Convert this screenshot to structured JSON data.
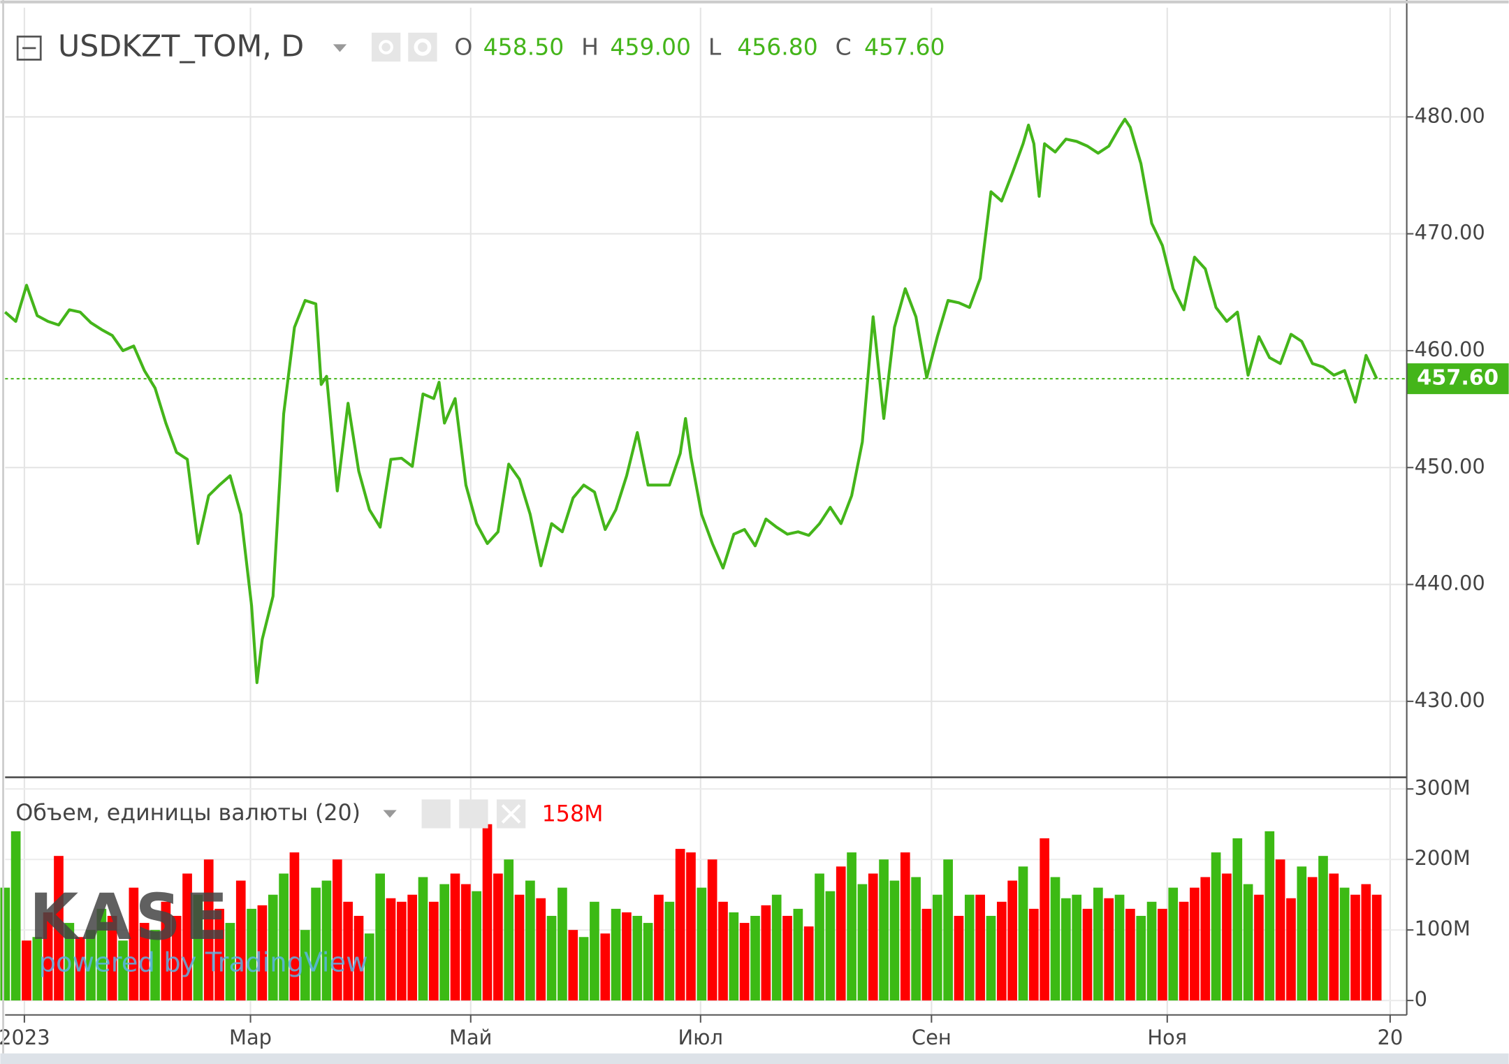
{
  "chart_data": [
    {
      "type": "line",
      "title": "USDKZT_TOM, D",
      "color": "#44b51a",
      "ohlc": [
        {
          "name": "O",
          "label": "458.50"
        },
        {
          "name": "H",
          "label": "459.00"
        },
        {
          "name": "L",
          "label": "456.80"
        },
        {
          "name": "C",
          "label": "457.60"
        }
      ],
      "last": {
        "value": 457.6,
        "label": "457.60"
      },
      "x": [
        0,
        2,
        4,
        6,
        8,
        10,
        12,
        14,
        16,
        18,
        20,
        22,
        24,
        26,
        28,
        30,
        32,
        34,
        36,
        38,
        40,
        42,
        44,
        46,
        47,
        48,
        50,
        52,
        54,
        56,
        58,
        59,
        60,
        62,
        64,
        66,
        68,
        70,
        72,
        74,
        76,
        78,
        80,
        81,
        82,
        84,
        86,
        88,
        90,
        92,
        94,
        96,
        98,
        100,
        102,
        104,
        106,
        108,
        110,
        112,
        114,
        116,
        118,
        120,
        122,
        124,
        126,
        127,
        128,
        130,
        132,
        134,
        136,
        138,
        140,
        142,
        144,
        146,
        148,
        150,
        152,
        154,
        156,
        158,
        160,
        162,
        164,
        166,
        168,
        170,
        172,
        174,
        176,
        178,
        180,
        182,
        184,
        186,
        188,
        190,
        191,
        192,
        193,
        194,
        196,
        198,
        200,
        202,
        204,
        206,
        208,
        209,
        210,
        212,
        214,
        216,
        218,
        220,
        222,
        224,
        226,
        228,
        230,
        232,
        234,
        236,
        238,
        240,
        242,
        244,
        246,
        248,
        250,
        252,
        253,
        254,
        256
      ],
      "values": [
        463.3,
        462.5,
        465.6,
        463.0,
        462.5,
        462.2,
        463.5,
        463.3,
        462.4,
        461.8,
        461.3,
        460.0,
        460.4,
        458.3,
        456.8,
        453.8,
        451.3,
        450.7,
        443.5,
        447.6,
        448.5,
        449.3,
        446.0,
        438.2,
        431.6,
        435.3,
        439.0,
        454.6,
        462.0,
        464.3,
        464.0,
        457.1,
        457.8,
        448.0,
        455.5,
        449.7,
        446.4,
        444.9,
        450.7,
        450.8,
        450.1,
        456.3,
        455.9,
        457.3,
        453.8,
        455.9,
        448.5,
        445.2,
        443.5,
        444.5,
        450.3,
        449.0,
        446.0,
        441.6,
        445.2,
        444.5,
        447.4,
        448.5,
        447.9,
        444.7,
        446.4,
        449.3,
        453.0,
        448.5,
        448.5,
        448.5,
        451.2,
        454.2,
        450.9,
        446.0,
        443.5,
        441.4,
        444.3,
        444.7,
        443.3,
        445.6,
        444.9,
        444.3,
        444.5,
        444.2,
        445.2,
        446.6,
        445.2,
        447.6,
        452.2,
        462.9,
        454.2,
        462.0,
        465.3,
        462.9,
        457.7,
        461.2,
        464.3,
        464.1,
        463.7,
        466.2,
        473.6,
        472.8,
        475.2,
        477.7,
        479.3,
        477.7,
        473.2,
        477.7,
        477.0,
        478.1,
        477.9,
        477.5,
        476.9,
        477.5,
        479.1,
        479.8,
        479.1,
        476.0,
        470.9,
        469.0,
        465.3,
        463.5,
        468.0,
        467.0,
        463.7,
        462.5,
        463.3,
        457.9,
        461.2,
        459.4,
        458.9,
        461.4,
        460.8,
        458.9,
        458.6,
        457.9,
        458.3,
        455.6,
        457.5,
        459.6,
        457.6
      ],
      "xlim": [
        0,
        261.6
      ],
      "xticks": [
        {
          "value": 3.6,
          "label": "2023"
        },
        {
          "value": 45.8,
          "label": "Мар"
        },
        {
          "value": 86.9,
          "label": "Май"
        },
        {
          "value": 129.8,
          "label": "Июл"
        },
        {
          "value": 172.9,
          "label": "Сен"
        },
        {
          "value": 216.9,
          "label": "Ноя"
        },
        {
          "value": 258.5,
          "label": "20"
        }
      ],
      "ylim": [
        423.5,
        490
      ],
      "yticks": [
        {
          "value": 430,
          "label": "430.00"
        },
        {
          "value": 440,
          "label": "440.00"
        },
        {
          "value": 450,
          "label": "450.00"
        },
        {
          "value": 460,
          "label": "460.00"
        },
        {
          "value": 470,
          "label": "470.00"
        },
        {
          "value": 480,
          "label": "480.00"
        }
      ],
      "grid": true
    },
    {
      "type": "bar",
      "title": "Объем, единицы валюты (20)",
      "legend_value": "158M",
      "watermark": "KASE",
      "credit": "powered by TradingView",
      "x": [
        0,
        2,
        4,
        6,
        8,
        10,
        12,
        14,
        16,
        18,
        20,
        22,
        24,
        26,
        28,
        30,
        32,
        34,
        36,
        38,
        40,
        42,
        44,
        46,
        48,
        50,
        52,
        54,
        56,
        58,
        60,
        62,
        64,
        66,
        68,
        70,
        72,
        74,
        76,
        78,
        80,
        82,
        84,
        86,
        88,
        90,
        92,
        94,
        96,
        98,
        100,
        102,
        104,
        106,
        108,
        110,
        112,
        114,
        116,
        118,
        120,
        122,
        124,
        126,
        128,
        130,
        132,
        134,
        136,
        138,
        140,
        142,
        144,
        146,
        148,
        150,
        152,
        154,
        156,
        158,
        160,
        162,
        164,
        166,
        168,
        170,
        172,
        174,
        176,
        178,
        180,
        182,
        184,
        186,
        188,
        190,
        192,
        194,
        196,
        198,
        200,
        202,
        204,
        206,
        208,
        210,
        212,
        214,
        216,
        218,
        220,
        222,
        224,
        226,
        228,
        230,
        232,
        234,
        236,
        238,
        240,
        242,
        244,
        246,
        248,
        250,
        252,
        254,
        256
      ],
      "values": [
        160,
        240,
        85,
        90,
        125,
        205,
        110,
        90,
        100,
        130,
        120,
        85,
        160,
        110,
        100,
        140,
        120,
        180,
        150,
        200,
        130,
        110,
        170,
        130,
        135,
        150,
        180,
        210,
        100,
        160,
        170,
        200,
        140,
        120,
        95,
        180,
        145,
        140,
        150,
        175,
        140,
        165,
        180,
        165,
        155,
        250,
        180,
        200,
        150,
        170,
        145,
        120,
        160,
        100,
        90,
        140,
        95,
        130,
        125,
        120,
        110,
        150,
        140,
        215,
        210,
        160,
        200,
        140,
        125,
        110,
        120,
        135,
        150,
        120,
        130,
        105,
        180,
        155,
        190,
        210,
        165,
        180,
        200,
        170,
        210,
        175,
        130,
        150,
        200,
        120,
        150,
        150,
        120,
        140,
        170,
        190,
        130,
        230,
        175,
        145,
        150,
        130,
        160,
        145,
        150,
        130,
        120,
        140,
        130,
        160,
        140,
        160,
        175,
        210,
        180,
        230,
        165,
        150,
        240,
        200,
        145,
        190,
        175,
        205,
        180,
        160,
        150,
        165,
        150
      ],
      "colors": [
        "#3cba14",
        "#3cba14",
        "#ff0000",
        "#3cba14",
        "#ff0000",
        "#ff0000",
        "#3cba14",
        "#ff0000",
        "#3cba14",
        "#3cba14",
        "#ff0000",
        "#3cba14",
        "#ff0000",
        "#ff0000",
        "#3cba14",
        "#ff0000",
        "#ff0000",
        "#ff0000",
        "#3cba14",
        "#ff0000",
        "#ff0000",
        "#3cba14",
        "#ff0000",
        "#3cba14",
        "#ff0000",
        "#3cba14",
        "#3cba14",
        "#ff0000",
        "#3cba14",
        "#3cba14",
        "#3cba14",
        "#ff0000",
        "#ff0000",
        "#ff0000",
        "#3cba14",
        "#3cba14",
        "#ff0000",
        "#ff0000",
        "#ff0000",
        "#3cba14",
        "#ff0000",
        "#3cba14",
        "#ff0000",
        "#ff0000",
        "#3cba14",
        "#ff0000",
        "#ff0000",
        "#3cba14",
        "#ff0000",
        "#3cba14",
        "#ff0000",
        "#3cba14",
        "#3cba14",
        "#ff0000",
        "#3cba14",
        "#3cba14",
        "#ff0000",
        "#3cba14",
        "#ff0000",
        "#3cba14",
        "#3cba14",
        "#ff0000",
        "#3cba14",
        "#ff0000",
        "#ff0000",
        "#3cba14",
        "#ff0000",
        "#ff0000",
        "#3cba14",
        "#ff0000",
        "#3cba14",
        "#ff0000",
        "#3cba14",
        "#ff0000",
        "#3cba14",
        "#ff0000",
        "#3cba14",
        "#3cba14",
        "#ff0000",
        "#3cba14",
        "#3cba14",
        "#ff0000",
        "#3cba14",
        "#3cba14",
        "#ff0000",
        "#3cba14",
        "#ff0000",
        "#3cba14",
        "#3cba14",
        "#ff0000",
        "#3cba14",
        "#ff0000",
        "#3cba14",
        "#ff0000",
        "#ff0000",
        "#3cba14",
        "#ff0000",
        "#ff0000",
        "#3cba14",
        "#3cba14",
        "#3cba14",
        "#ff0000",
        "#3cba14",
        "#ff0000",
        "#3cba14",
        "#ff0000",
        "#3cba14",
        "#3cba14",
        "#ff0000",
        "#3cba14",
        "#ff0000",
        "#ff0000",
        "#ff0000",
        "#3cba14",
        "#ff0000",
        "#3cba14",
        "#3cba14",
        "#ff0000",
        "#3cba14",
        "#ff0000",
        "#ff0000",
        "#3cba14",
        "#ff0000",
        "#3cba14",
        "#ff0000",
        "#3cba14",
        "#ff0000",
        "#ff0000",
        "#ff0000"
      ],
      "ylim": [
        -20.5,
        316.5
      ],
      "yticks": [
        0,
        {
          "value": 100,
          "label": "100M"
        },
        {
          "value": 200,
          "label": "200M"
        },
        {
          "value": 300,
          "label": "300M"
        }
      ]
    }
  ]
}
